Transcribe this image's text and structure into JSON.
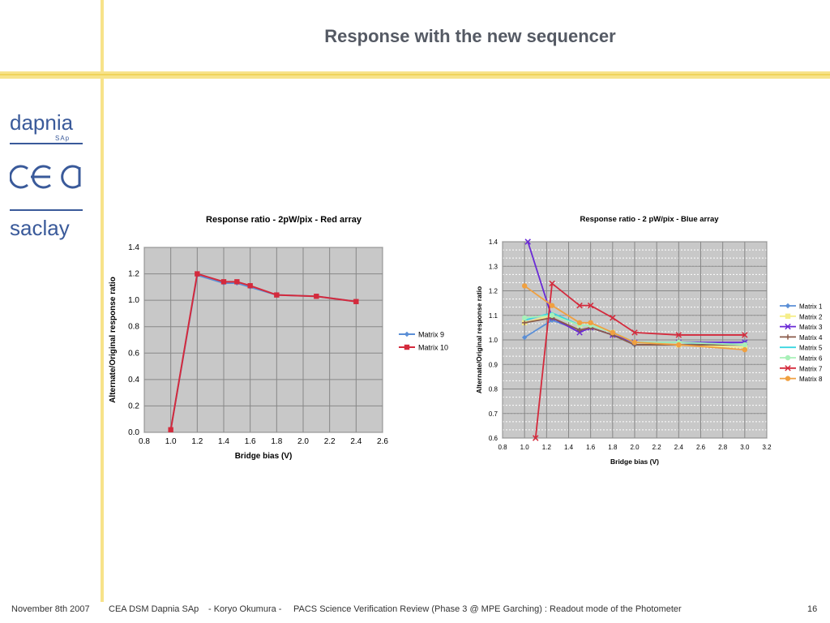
{
  "slide": {
    "title": "Response with the new sequencer",
    "page_number": "16"
  },
  "logos": {
    "dapnia": "dapnia",
    "dapnia_sub": "SAp",
    "cea": "cea",
    "saclay": "saclay"
  },
  "footer": {
    "date": "November 8th 2007",
    "org": "CEA DSM Dapnia SAp",
    "author": "- Koryo Okumura -",
    "review": "PACS Science Verification Review (Phase 3 @ MPE Garching) : Readout mode of the Photometer"
  },
  "colors": {
    "band": "#f7e38a",
    "logo_blue": "#3a5a9a"
  },
  "chart_data": [
    {
      "type": "line",
      "title": "Response ratio - 2pW/pix - Red array",
      "xlabel": "Bridge bias (V)",
      "ylabel": "Alternate/Original response ratio",
      "xlim": [
        0.8,
        2.6
      ],
      "ylim": [
        0.0,
        1.4
      ],
      "xticks": [
        "0.8",
        "1.0",
        "1.2",
        "1.4",
        "1.6",
        "1.8",
        "2.0",
        "2.2",
        "2.4",
        "2.6"
      ],
      "yticks": [
        "0.0",
        "0.2",
        "0.4",
        "0.6",
        "0.8",
        "1.0",
        "1.2",
        "1.4"
      ],
      "grid": true,
      "legend_position": "right",
      "series": [
        {
          "name": "Matrix 9",
          "color": "#5b8fd6",
          "marker": "diamond",
          "x": [
            1.0,
            1.2,
            1.4,
            1.5,
            1.6,
            1.8,
            2.1,
            2.4
          ],
          "y": [
            0.02,
            1.19,
            1.13,
            1.13,
            1.1,
            1.04,
            1.03,
            0.99
          ]
        },
        {
          "name": "Matrix 10",
          "color": "#d42a3c",
          "marker": "square",
          "x": [
            1.0,
            1.2,
            1.4,
            1.5,
            1.6,
            1.8,
            2.1,
            2.4
          ],
          "y": [
            0.02,
            1.2,
            1.14,
            1.14,
            1.11,
            1.04,
            1.03,
            0.99
          ]
        }
      ]
    },
    {
      "type": "line",
      "title": "Response ratio - 2 pW/pix - Blue array",
      "xlabel": "Bridge bias (V)",
      "ylabel": "Alternate/Original response ratio",
      "xlim": [
        0.8,
        3.2
      ],
      "ylim": [
        0.6,
        1.4
      ],
      "xticks": [
        "0.8",
        "1.0",
        "1.2",
        "1.4",
        "1.6",
        "1.8",
        "2.0",
        "2.2",
        "2.4",
        "2.6",
        "2.8",
        "3.0",
        "3.2"
      ],
      "yticks": [
        "0.6",
        "0.7",
        "0.8",
        "0.9",
        "1.0",
        "1.1",
        "1.2",
        "1.3",
        "1.4"
      ],
      "grid": true,
      "legend_position": "right",
      "series": [
        {
          "name": "Matrix 1",
          "color": "#5b8fd6",
          "marker": "diamond",
          "x": [
            1.0,
            1.25,
            1.5,
            1.6,
            1.8,
            2.0,
            2.4,
            3.0
          ],
          "y": [
            1.01,
            1.08,
            1.04,
            1.05,
            1.02,
            0.98,
            0.98,
            0.99
          ]
        },
        {
          "name": "Matrix 2",
          "color": "#f5ee8a",
          "marker": "square",
          "x": [
            1.0,
            1.25,
            1.5,
            1.6,
            1.8,
            2.0,
            2.4,
            3.0
          ],
          "y": [
            1.07,
            1.1,
            1.06,
            1.06,
            1.03,
            0.99,
            0.98,
            0.97
          ]
        },
        {
          "name": "Matrix 3",
          "color": "#6a2ad6",
          "marker": "x",
          "x": [
            1.03,
            1.25,
            1.5,
            1.6,
            1.8,
            2.0,
            2.4,
            3.0
          ],
          "y": [
            1.4,
            1.09,
            1.03,
            1.05,
            1.02,
            0.99,
            0.99,
            0.99
          ]
        },
        {
          "name": "Matrix 4",
          "color": "#8a5a4a",
          "marker": "plus",
          "x": [
            1.0,
            1.25,
            1.5,
            1.6,
            1.8,
            2.0,
            2.4,
            3.0
          ],
          "y": [
            1.07,
            1.09,
            1.04,
            1.05,
            1.02,
            0.98,
            0.98,
            0.98
          ]
        },
        {
          "name": "Matrix 5",
          "color": "#3ad6e0",
          "marker": "none",
          "x": [
            1.0,
            1.25,
            1.5,
            1.6,
            1.8,
            2.0,
            2.4,
            3.0
          ],
          "y": [
            1.08,
            1.11,
            1.06,
            1.06,
            1.03,
            0.99,
            0.99,
            0.98
          ]
        },
        {
          "name": "Matrix 6",
          "color": "#a8f0b8",
          "marker": "circle",
          "x": [
            1.0,
            1.25,
            1.5,
            1.6,
            1.8,
            2.0,
            2.4,
            3.0
          ],
          "y": [
            1.09,
            1.1,
            1.06,
            1.06,
            1.03,
            0.99,
            0.99,
            0.98
          ]
        },
        {
          "name": "Matrix 7",
          "color": "#d42a3c",
          "marker": "x",
          "x": [
            1.1,
            1.25,
            1.5,
            1.6,
            1.8,
            2.0,
            2.4,
            3.0
          ],
          "y": [
            0.6,
            1.23,
            1.14,
            1.14,
            1.09,
            1.03,
            1.02,
            1.02
          ]
        },
        {
          "name": "Matrix 8",
          "color": "#f0a040",
          "marker": "circle",
          "x": [
            1.0,
            1.25,
            1.5,
            1.6,
            1.8,
            2.0,
            2.4,
            3.0
          ],
          "y": [
            1.22,
            1.14,
            1.07,
            1.07,
            1.03,
            0.99,
            0.98,
            0.96
          ]
        }
      ]
    }
  ]
}
